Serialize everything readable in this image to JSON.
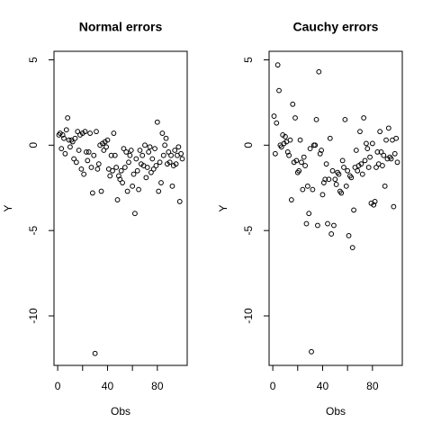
{
  "chart_data": [
    {
      "type": "scatter",
      "title": "Normal errors",
      "xlabel": "Obs",
      "ylabel": "Y",
      "color": "#000000",
      "xlim": [
        -2.96,
        103.96
      ],
      "ylim": [
        -12.9,
        5.5
      ],
      "xticks": [
        0,
        20,
        40,
        60,
        80
      ],
      "yticks": [
        5,
        0,
        -5,
        -10
      ],
      "x": [
        1,
        2,
        3,
        4,
        5,
        6,
        7,
        8,
        9,
        10,
        11,
        12,
        13,
        14,
        15,
        16,
        17,
        18,
        19,
        20,
        21,
        22,
        23,
        24,
        25,
        26,
        27,
        28,
        29,
        30,
        31,
        32,
        33,
        34,
        35,
        36,
        37,
        38,
        39,
        40,
        41,
        42,
        43,
        44,
        45,
        46,
        47,
        48,
        49,
        50,
        51,
        52,
        53,
        54,
        55,
        56,
        57,
        58,
        59,
        60,
        61,
        62,
        63,
        64,
        65,
        66,
        67,
        68,
        69,
        70,
        71,
        72,
        73,
        74,
        75,
        76,
        77,
        78,
        79,
        80,
        81,
        82,
        83,
        84,
        85,
        86,
        87,
        88,
        89,
        90,
        91,
        92,
        93,
        94,
        95,
        96,
        97,
        98,
        99,
        100
      ],
      "values": [
        0.6,
        0.7,
        -0.2,
        0.6,
        0.4,
        -0.5,
        0.9,
        1.6,
        0.3,
        -0.1,
        0.3,
        0.2,
        -0.8,
        0.4,
        -1.0,
        0.8,
        -0.3,
        0.6,
        -1.4,
        0.7,
        -1.7,
        0.8,
        -0.4,
        -0.9,
        -0.4,
        0.7,
        -1.3,
        -2.8,
        -0.6,
        -12.2,
        0.8,
        -1.4,
        -1.1,
        0.0,
        -2.7,
        0.1,
        -0.3,
        0.2,
        -0.1,
        0.3,
        -1.4,
        -1.8,
        -0.6,
        -1.5,
        0.7,
        -0.6,
        -1.3,
        -3.2,
        -1.8,
        -2.0,
        -1.5,
        -2.2,
        -0.2,
        -1.3,
        -0.4,
        -2.7,
        -1.0,
        -0.6,
        -0.3,
        -2.4,
        -1.7,
        -4.0,
        -0.8,
        -1.5,
        -2.6,
        -0.3,
        -1.1,
        -0.6,
        -1.2,
        0.0,
        -1.9,
        -1.3,
        -0.4,
        -0.1,
        -1.6,
        -0.8,
        -1.4,
        -0.2,
        -1.2,
        1.35,
        -2.7,
        -1.0,
        -2.2,
        0.7,
        -0.6,
        0.0,
        0.4,
        -1.1,
        -0.4,
        -1.0,
        -0.6,
        -2.4,
        -1.2,
        -0.3,
        -1.1,
        -0.6,
        -0.1,
        -3.3,
        -0.5,
        -0.8
      ]
    },
    {
      "type": "scatter",
      "title": "Cauchy errors",
      "xlabel": "Obs",
      "ylabel": "Y",
      "color": "#000000",
      "xlim": [
        -2.96,
        103.96
      ],
      "ylim": [
        -12.9,
        5.5
      ],
      "xticks": [
        0,
        20,
        40,
        60,
        80
      ],
      "yticks": [
        5,
        0,
        -5,
        -10
      ],
      "x": [
        1,
        2,
        3,
        4,
        5,
        6,
        7,
        8,
        9,
        10,
        11,
        12,
        13,
        14,
        15,
        16,
        17,
        18,
        19,
        20,
        21,
        22,
        23,
        24,
        25,
        26,
        27,
        28,
        29,
        30,
        31,
        32,
        33,
        34,
        35,
        36,
        37,
        38,
        39,
        40,
        41,
        42,
        43,
        44,
        45,
        46,
        47,
        48,
        49,
        50,
        51,
        52,
        53,
        54,
        55,
        56,
        57,
        58,
        59,
        60,
        61,
        62,
        63,
        64,
        65,
        66,
        67,
        68,
        69,
        70,
        71,
        72,
        73,
        74,
        75,
        76,
        77,
        78,
        79,
        80,
        81,
        82,
        83,
        84,
        85,
        86,
        87,
        88,
        89,
        90,
        91,
        92,
        93,
        94,
        95,
        96,
        97,
        98,
        99,
        100
      ],
      "values": [
        1.7,
        -0.5,
        1.3,
        4.7,
        3.2,
        0.0,
        -0.1,
        0.6,
        0.1,
        0.5,
        0.2,
        -0.4,
        -0.6,
        0.3,
        -3.2,
        2.4,
        -1.0,
        1.6,
        -0.9,
        -1.6,
        -1.5,
        0.3,
        -1.0,
        -2.6,
        -0.7,
        -1.2,
        -4.6,
        -2.4,
        -4.0,
        -0.2,
        -12.1,
        -2.6,
        0.0,
        0.0,
        1.5,
        -4.7,
        4.3,
        -0.5,
        -0.3,
        -2.9,
        -2.2,
        -2.0,
        -1.1,
        -4.6,
        -2.0,
        0.4,
        -5.2,
        -1.5,
        -4.7,
        -2.0,
        -2.3,
        -1.6,
        -1.7,
        -2.7,
        -2.8,
        -0.9,
        -1.3,
        1.5,
        -2.4,
        -1.5,
        -5.3,
        -1.8,
        -1.9,
        -6.0,
        -3.8,
        -1.3,
        -0.3,
        -1.5,
        -1.2,
        0.8,
        -1.1,
        -1.7,
        1.6,
        -0.9,
        0.1,
        -0.2,
        -1.3,
        -0.7,
        -3.4,
        0.1,
        -3.5,
        -3.3,
        -1.3,
        -0.4,
        -1.1,
        0.8,
        -0.4,
        -1.2,
        -0.6,
        -2.4,
        0.3,
        -0.8,
        1.0,
        -0.7,
        -0.8,
        0.3,
        -3.6,
        -0.5,
        0.4,
        -1.0
      ]
    }
  ]
}
